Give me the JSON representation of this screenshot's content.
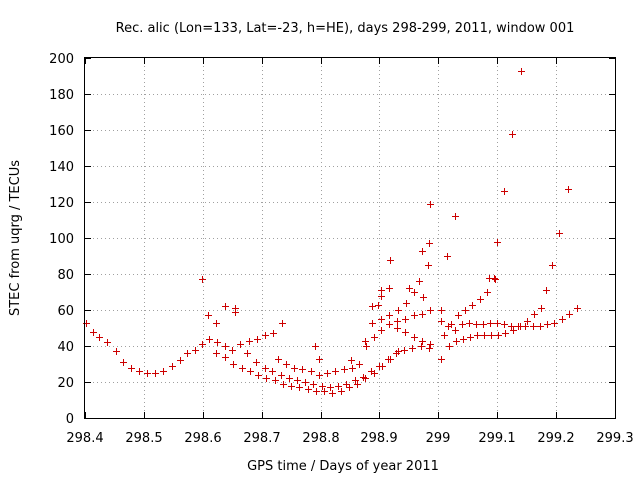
{
  "chart_data": {
    "type": "scatter",
    "title": "Rec. alic (Lon=133, Lat=-23, h=HE), days 298-299, 2011, window 001",
    "xlabel": "GPS time / Days of year 2011",
    "ylabel": "STEC from uqrg / TECUs",
    "xlim": [
      298.4,
      299.3
    ],
    "ylim": [
      0,
      200
    ],
    "x_ticks": [
      298.4,
      298.5,
      298.6,
      298.7,
      298.8,
      298.9,
      299.0,
      299.1,
      299.2,
      299.3
    ],
    "x_tick_labels": [
      "298.4",
      "298.5",
      "298.6",
      "298.7",
      "298.8",
      "298.9",
      "299",
      "299.1",
      "299.2",
      "299.3"
    ],
    "y_ticks": [
      0,
      20,
      40,
      60,
      80,
      100,
      120,
      140,
      160,
      180,
      200
    ],
    "y_tick_labels": [
      "0",
      "20",
      "40",
      "60",
      "80",
      "100",
      "120",
      "140",
      "160",
      "180",
      "200"
    ],
    "grid": true,
    "marker": "+",
    "color": "#cc0000",
    "series": [
      {
        "name": "",
        "points": [
          [
            298.402,
            53
          ],
          [
            298.413,
            48
          ],
          [
            298.424,
            45
          ],
          [
            298.437,
            42
          ],
          [
            298.452,
            37
          ],
          [
            298.465,
            31
          ],
          [
            298.478,
            28
          ],
          [
            298.491,
            26
          ],
          [
            298.505,
            25
          ],
          [
            298.519,
            25
          ],
          [
            298.533,
            26
          ],
          [
            298.547,
            29
          ],
          [
            298.561,
            32
          ],
          [
            298.574,
            36
          ],
          [
            298.587,
            38
          ],
          [
            298.598,
            77
          ],
          [
            298.609,
            57
          ],
          [
            298.622,
            53
          ],
          [
            298.637,
            62
          ],
          [
            298.655,
            61
          ],
          [
            298.655,
            59
          ],
          [
            298.598,
            41
          ],
          [
            298.611,
            44
          ],
          [
            298.624,
            42
          ],
          [
            298.637,
            40
          ],
          [
            298.65,
            38
          ],
          [
            298.664,
            41
          ],
          [
            298.678,
            43
          ],
          [
            298.692,
            44
          ],
          [
            298.706,
            46
          ],
          [
            298.72,
            47
          ],
          [
            298.735,
            53
          ],
          [
            298.622,
            36
          ],
          [
            298.638,
            34
          ],
          [
            298.652,
            30
          ],
          [
            298.666,
            28
          ],
          [
            298.68,
            26
          ],
          [
            298.694,
            24
          ],
          [
            298.708,
            22
          ],
          [
            298.722,
            21
          ],
          [
            298.736,
            19
          ],
          [
            298.75,
            18
          ],
          [
            298.764,
            17
          ],
          [
            298.778,
            16
          ],
          [
            298.792,
            15
          ],
          [
            298.806,
            15
          ],
          [
            298.82,
            14
          ],
          [
            298.834,
            15
          ],
          [
            298.848,
            17
          ],
          [
            298.862,
            19
          ],
          [
            298.876,
            22
          ],
          [
            298.89,
            25
          ],
          [
            298.904,
            29
          ],
          [
            298.918,
            33
          ],
          [
            298.932,
            37
          ],
          [
            298.675,
            36
          ],
          [
            298.69,
            31
          ],
          [
            298.705,
            28
          ],
          [
            298.718,
            26
          ],
          [
            298.732,
            24
          ],
          [
            298.746,
            22
          ],
          [
            298.76,
            21
          ],
          [
            298.774,
            20
          ],
          [
            298.788,
            19
          ],
          [
            298.802,
            18
          ],
          [
            298.816,
            17
          ],
          [
            298.83,
            18
          ],
          [
            298.844,
            19
          ],
          [
            298.858,
            21
          ],
          [
            298.872,
            23
          ],
          [
            298.886,
            26
          ],
          [
            298.9,
            29
          ],
          [
            298.914,
            33
          ],
          [
            298.928,
            36
          ],
          [
            298.942,
            38
          ],
          [
            298.956,
            39
          ],
          [
            298.97,
            40
          ],
          [
            298.984,
            39
          ],
          [
            298.727,
            33
          ],
          [
            298.741,
            30
          ],
          [
            298.755,
            28
          ],
          [
            298.769,
            27
          ],
          [
            298.783,
            26
          ],
          [
            298.797,
            24
          ],
          [
            298.811,
            25
          ],
          [
            298.825,
            26
          ],
          [
            298.839,
            27
          ],
          [
            298.853,
            28
          ],
          [
            298.866,
            30
          ],
          [
            298.878,
            40
          ],
          [
            298.89,
            45
          ],
          [
            298.902,
            49
          ],
          [
            298.916,
            52
          ],
          [
            298.93,
            54
          ],
          [
            298.944,
            55
          ],
          [
            298.958,
            57
          ],
          [
            298.972,
            58
          ],
          [
            298.986,
            60
          ],
          [
            298.79,
            40
          ],
          [
            298.797,
            33
          ],
          [
            298.852,
            32
          ],
          [
            298.876,
            43
          ],
          [
            298.888,
            62
          ],
          [
            298.898,
            63
          ],
          [
            298.902,
            68
          ],
          [
            298.902,
            71
          ],
          [
            298.916,
            72
          ],
          [
            298.918,
            88
          ],
          [
            298.932,
            60
          ],
          [
            298.945,
            64
          ],
          [
            298.95,
            72
          ],
          [
            298.958,
            70
          ],
          [
            298.968,
            76
          ],
          [
            298.973,
            93
          ],
          [
            298.983,
            85
          ],
          [
            298.984,
            97
          ],
          [
            298.985,
            119
          ],
          [
            298.974,
            67
          ],
          [
            298.888,
            53
          ],
          [
            298.902,
            55
          ],
          [
            298.916,
            57
          ],
          [
            298.93,
            50
          ],
          [
            298.944,
            48
          ],
          [
            298.958,
            45
          ],
          [
            298.972,
            43
          ],
          [
            298.986,
            41
          ],
          [
            299.005,
            33
          ],
          [
            299.01,
            46
          ],
          [
            299.022,
            52
          ],
          [
            299.034,
            57
          ],
          [
            299.046,
            60
          ],
          [
            299.058,
            63
          ],
          [
            299.07,
            66
          ],
          [
            299.082,
            70
          ],
          [
            299.094,
            78
          ],
          [
            299.004,
            54
          ],
          [
            299.016,
            51
          ],
          [
            299.028,
            49
          ],
          [
            299.04,
            52
          ],
          [
            299.052,
            53
          ],
          [
            299.064,
            52
          ],
          [
            299.076,
            52
          ],
          [
            299.088,
            53
          ],
          [
            299.1,
            53
          ],
          [
            299.112,
            52
          ],
          [
            299.124,
            51
          ],
          [
            299.136,
            51
          ],
          [
            299.148,
            51
          ],
          [
            299.16,
            51
          ],
          [
            299.172,
            51
          ],
          [
            299.184,
            52
          ],
          [
            299.196,
            53
          ],
          [
            299.21,
            55
          ],
          [
            299.222,
            58
          ],
          [
            299.236,
            61
          ],
          [
            299.018,
            40
          ],
          [
            299.03,
            43
          ],
          [
            299.042,
            44
          ],
          [
            299.054,
            45
          ],
          [
            299.066,
            46
          ],
          [
            299.078,
            46
          ],
          [
            299.09,
            46
          ],
          [
            299.102,
            46
          ],
          [
            299.114,
            47
          ],
          [
            299.126,
            49
          ],
          [
            299.138,
            51
          ],
          [
            299.15,
            54
          ],
          [
            299.162,
            58
          ],
          [
            299.174,
            61
          ],
          [
            299.005,
            60
          ],
          [
            299.015,
            90
          ],
          [
            299.028,
            112
          ],
          [
            299.086,
            78
          ],
          [
            299.097,
            77
          ],
          [
            299.1,
            98
          ],
          [
            299.112,
            126
          ],
          [
            299.125,
            158
          ],
          [
            299.141,
            193
          ],
          [
            299.183,
            71
          ],
          [
            299.193,
            85
          ],
          [
            299.205,
            103
          ],
          [
            299.22,
            127
          ]
        ]
      }
    ]
  }
}
